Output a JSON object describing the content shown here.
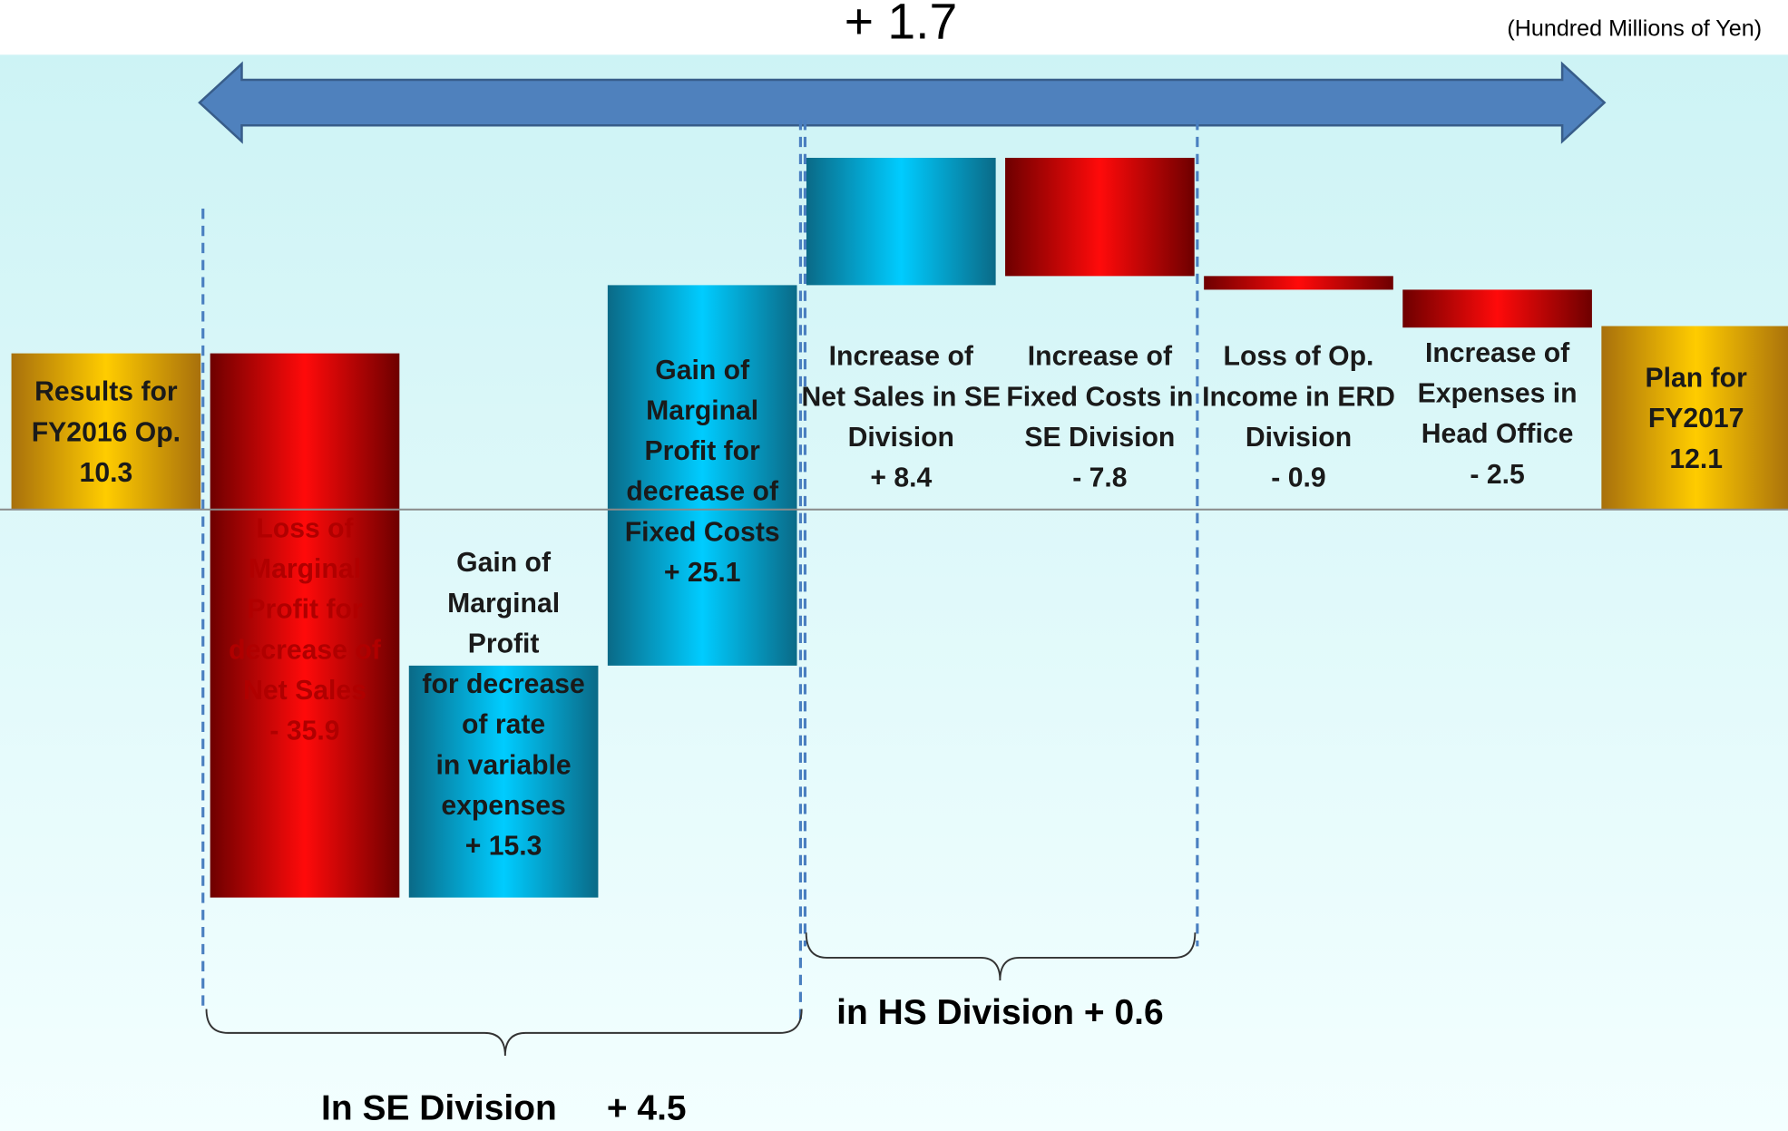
{
  "chart_data": {
    "type": "waterfall",
    "title": "+ 1.7",
    "subtitle": "(Hundred Millions of Yen)",
    "categories": [
      [
        "Results for",
        "FY2016 Op."
      ],
      [
        "Loss of",
        "Marginal",
        "Profit for",
        "decrease of",
        "Net Sales"
      ],
      [
        "Gain of",
        "Marginal",
        "Profit",
        "for decrease",
        "of rate",
        "in variable",
        "expenses"
      ],
      [
        "Gain of",
        "Marginal",
        "Profit for",
        "decrease of",
        "Fixed Costs"
      ],
      [
        "Increase of",
        "Net Sales in SE",
        "Division"
      ],
      [
        "Increase of",
        "Fixed Costs in",
        "SE Division"
      ],
      [
        "Loss of Op.",
        "Income in ERD",
        "Division"
      ],
      [
        "Increase of",
        "Expenses in",
        "Head Office"
      ],
      [
        "Plan for",
        "FY2017"
      ]
    ],
    "values": [
      10.3,
      -35.9,
      15.3,
      25.1,
      8.4,
      -7.8,
      -0.9,
      -2.5,
      12.1
    ],
    "value_labels": [
      "10.3",
      "- 35.9",
      "+ 15.3",
      "+ 25.1",
      "+ 8.4",
      "- 7.8",
      "- 0.9",
      "- 2.5",
      "12.1"
    ],
    "totals": [
      true,
      false,
      false,
      false,
      false,
      false,
      false,
      false,
      true
    ],
    "colors": {
      "increase": [
        "#0a6a87",
        "#00ccff"
      ],
      "decrease": [
        "#6e0000",
        "#ff0a0a"
      ],
      "total": [
        "#a8700c",
        "#ffcc00"
      ]
    },
    "ylim": [
      -41,
      30
    ],
    "annotations": [
      "in HS Division + 0.6",
      "In SE Division",
      "+ 4.5"
    ]
  }
}
